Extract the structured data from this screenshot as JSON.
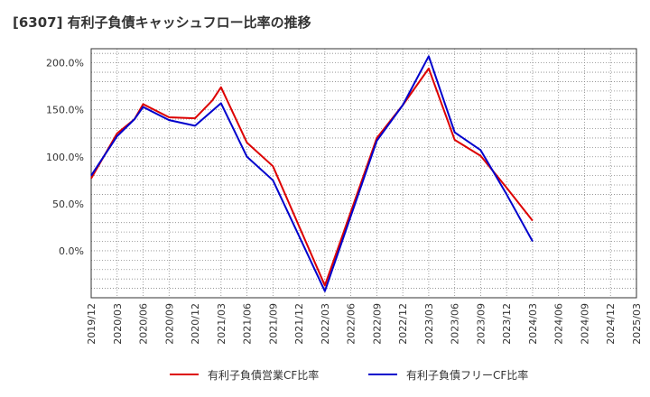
{
  "chart_data": {
    "type": "line",
    "title": "[6307]  有利子負債キャッシュフロー比率の推移",
    "xlabel": "",
    "ylabel": "",
    "x_ticks": [
      "2019/12",
      "2020/03",
      "2020/06",
      "2020/09",
      "2020/12",
      "2021/03",
      "2021/06",
      "2021/09",
      "2021/12",
      "2022/03",
      "2022/06",
      "2022/09",
      "2022/12",
      "2023/03",
      "2023/06",
      "2023/09",
      "2023/12",
      "2024/03",
      "2024/06",
      "2024/09",
      "2024/12",
      "2025/03"
    ],
    "y_ticks": [
      "200.0%",
      "150.0%",
      "100.0%",
      "50.0%",
      "0.0%"
    ],
    "ylim": [
      -50,
      215
    ],
    "y_tick_values": [
      200,
      150,
      100,
      50,
      0
    ],
    "grid": true,
    "legend_position": "bottom",
    "series": [
      {
        "name": "有利子負債営業CF比率",
        "color": "#dd0000",
        "points": [
          [
            "2019/12",
            77
          ],
          [
            "2020/03",
            125
          ],
          [
            "2020/05",
            140
          ],
          [
            "2020/06",
            156
          ],
          [
            "2020/09",
            142
          ],
          [
            "2020/12",
            141
          ],
          [
            "2021/02",
            160
          ],
          [
            "2021/03",
            174
          ],
          [
            "2021/06",
            115
          ],
          [
            "2021/09",
            90
          ],
          [
            "2022/03",
            -37
          ],
          [
            "2022/09",
            120
          ],
          [
            "2022/12",
            155
          ],
          [
            "2023/03",
            194
          ],
          [
            "2023/06",
            118
          ],
          [
            "2023/09",
            101
          ],
          [
            "2023/12",
            67
          ],
          [
            "2024/03",
            32
          ]
        ]
      },
      {
        "name": "有利子負債フリーCF比率",
        "color": "#0000cc",
        "points": [
          [
            "2019/12",
            80
          ],
          [
            "2020/03",
            122
          ],
          [
            "2020/05",
            140
          ],
          [
            "2020/06",
            153
          ],
          [
            "2020/09",
            139
          ],
          [
            "2020/12",
            133
          ],
          [
            "2021/03",
            157
          ],
          [
            "2021/06",
            100
          ],
          [
            "2021/09",
            75
          ],
          [
            "2022/03",
            -43
          ],
          [
            "2022/09",
            117
          ],
          [
            "2022/12",
            155
          ],
          [
            "2023/03",
            207
          ],
          [
            "2023/06",
            126
          ],
          [
            "2023/09",
            107
          ],
          [
            "2023/12",
            60
          ],
          [
            "2024/03",
            10
          ]
        ]
      }
    ]
  }
}
